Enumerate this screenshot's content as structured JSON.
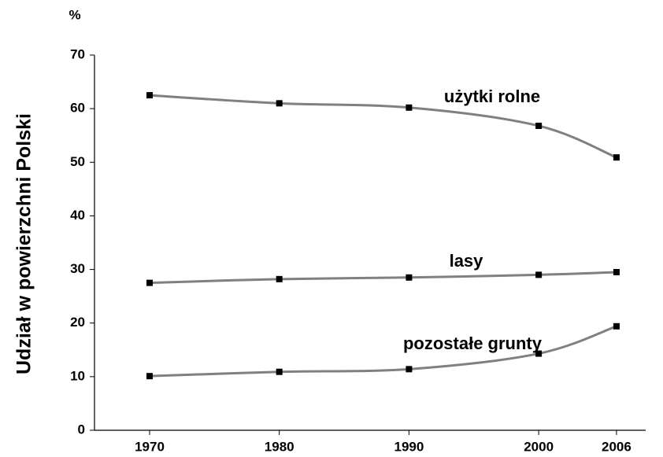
{
  "chart_data": {
    "type": "line",
    "y_unit": "%",
    "ylabel": "Udział w powierzchni Polski",
    "x": [
      1970,
      1980,
      1990,
      2000,
      2006
    ],
    "xlim": [
      1965.75,
      2008.25
    ],
    "xticks": [
      1970,
      1980,
      1990,
      2000,
      2006
    ],
    "ylim": [
      0,
      70
    ],
    "yticks": [
      0,
      10,
      20,
      30,
      40,
      50,
      60,
      70
    ],
    "grid": false,
    "series": [
      {
        "name": "użytki rolne",
        "color": "#808080",
        "values": [
          62.5,
          61,
          60.2,
          56.8,
          50.9
        ]
      },
      {
        "name": "lasy",
        "color": "#808080",
        "values": [
          27.5,
          28.2,
          28.5,
          29.0,
          29.5
        ]
      },
      {
        "name": "pozostałe grunty",
        "color": "#808080",
        "values": [
          10.1,
          10.9,
          11.4,
          14.3,
          19.4
        ]
      }
    ]
  }
}
